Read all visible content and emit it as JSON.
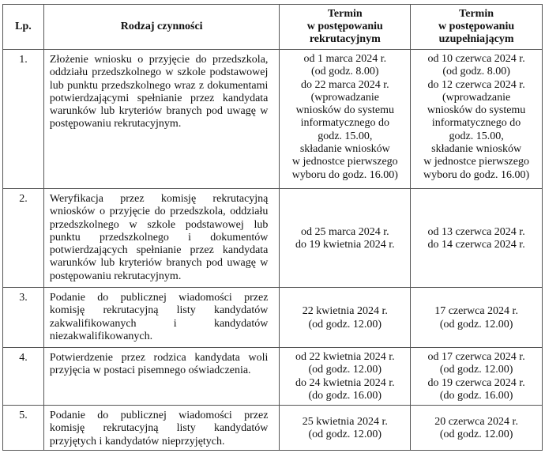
{
  "header": {
    "lp": "Lp.",
    "activity": "Rodzaj czynności",
    "recruitment": "Termin\nw postępowaniu\nrekrutacyjnym",
    "supplementary": "Termin\nw postępowaniu\nuzupełniającym"
  },
  "rows": [
    {
      "lp": "1.",
      "activity": "Złożenie wniosku o przyjęcie do przedszkola, oddziału przedszkolnego w szkole podstawowej lub punktu przedszkolnego wraz z dokumentami potwierdzającymi spełnianie przez kandydata warunków lub kryteriów branych pod uwagę w postępowaniu rekrutacyjnym.",
      "recruitment": "od 1 marca 2024 r.\n(od godz. 8.00)\ndo 22 marca 2024 r.\n(wprowadzanie\nwniosków do systemu\ninformatycznego do\ngodz. 15.00,\nskładanie wniosków\nw jednostce pierwszego\nwyboru do godz. 16.00)",
      "supplementary": "od 10 czerwca 2024 r.\n(od godz. 8.00)\ndo 12 czerwca 2024 r.\n(wprowadzanie\nwniosków do systemu\ninformatycznego do\ngodz. 15.00,\nskładanie wniosków\nw jednostce pierwszego\nwyboru do godz. 16.00)"
    },
    {
      "lp": "2.",
      "activity": "Weryfikacja przez komisję rekrutacyjną wniosków o przyjęcie do przedszkola, oddziału przedszkolnego w szkole podstawowej lub punktu przedszkolnego i dokumentów potwierdzających spełnianie przez kandydata warunków lub kryteriów branych pod uwagę w postępowaniu rekrutacyjnym.",
      "recruitment": "od 25 marca 2024 r.\ndo 19 kwietnia 2024 r.",
      "supplementary": "od 13 czerwca 2024 r.\ndo 14 czerwca 2024 r."
    },
    {
      "lp": "3.",
      "activity": "Podanie do publicznej wiadomości przez komisję rekrutacyjną listy kandydatów zakwalifikowanych i kandydatów niezakwalifikowanych.",
      "recruitment": "22 kwietnia 2024 r.\n(od godz. 12.00)",
      "supplementary": "17 czerwca 2024 r.\n(od godz. 12.00)"
    },
    {
      "lp": "4.",
      "activity": "Potwierdzenie przez rodzica kandydata woli przyjęcia w postaci pisemnego oświadczenia.",
      "recruitment": "od 22 kwietnia 2024 r.\n(od godz. 12.00)\ndo 24 kwietnia 2024 r.\n(do godz. 16.00)",
      "supplementary": "od 17 czerwca 2024 r.\n(od godz. 12.00)\ndo 19 czerwca 2024 r.\n(do godz. 16.00)"
    },
    {
      "lp": "5.",
      "activity": "Podanie do publicznej wiadomości przez komisję rekrutacyjną listy kandydatów przyjętych i kandydatów nieprzyjętych.",
      "recruitment": "25 kwietnia 2024 r.\n(od godz. 12.00)",
      "supplementary": "20 czerwca 2024 r.\n(od godz. 12.00)"
    }
  ]
}
